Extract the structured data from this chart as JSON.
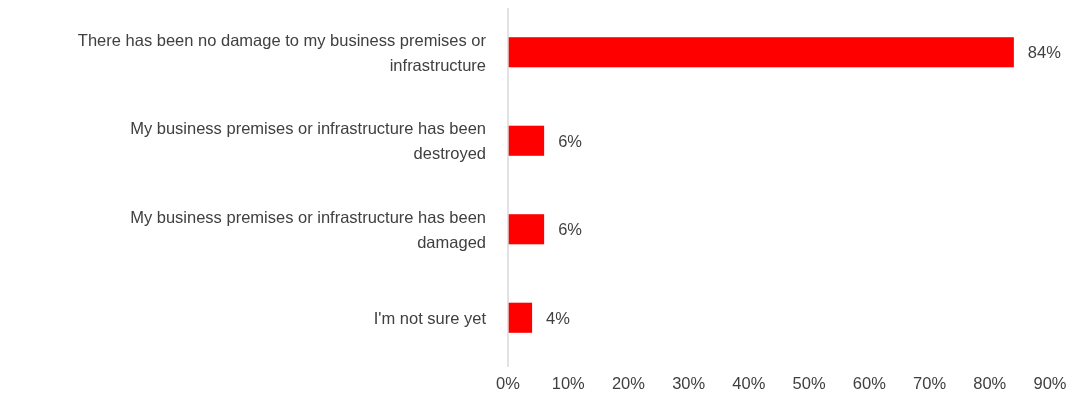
{
  "chart_data": {
    "type": "bar",
    "orientation": "horizontal",
    "categories": [
      "There has been no damage to my business premises or infrastructure",
      "My business premises or infrastructure has been destroyed",
      "My business premises or infrastructure has been damaged",
      "I'm not sure yet"
    ],
    "values": [
      84,
      6,
      6,
      4
    ],
    "color": "#ff0000",
    "xlim": [
      0,
      90
    ],
    "xticks": [
      {
        "value": 0,
        "label": "0%"
      },
      {
        "value": 10,
        "label": "10%"
      },
      {
        "value": 20,
        "label": "20%"
      },
      {
        "value": 30,
        "label": "30%"
      },
      {
        "value": 40,
        "label": "40%"
      },
      {
        "value": 50,
        "label": "50%"
      },
      {
        "value": 60,
        "label": "60%"
      },
      {
        "value": 70,
        "label": "70%"
      },
      {
        "value": 80,
        "label": "80%"
      },
      {
        "value": 90,
        "label": "90%"
      }
    ],
    "value_labels": [
      "84%",
      "6%",
      "6%",
      "4%"
    ],
    "grid": false
  }
}
